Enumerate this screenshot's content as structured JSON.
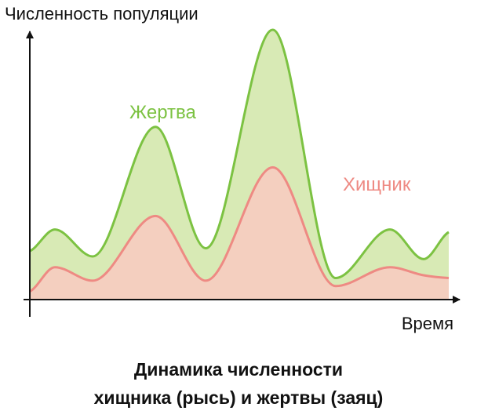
{
  "chart_data": {
    "type": "area",
    "ylabel": "Численность популяции",
    "xlabel": "Время",
    "caption": [
      "Динамика численности",
      "хищника (рысь) и жертвы (заяц)"
    ],
    "x": [
      0,
      0.06,
      0.15,
      0.3,
      0.42,
      0.58,
      0.73,
      0.86,
      0.94,
      1.0
    ],
    "ylim": [
      0,
      1
    ],
    "grid": false,
    "series": [
      {
        "name": "Жертва",
        "color": "#7cc242",
        "fill": "#d8eab5",
        "values": [
          0.18,
          0.26,
          0.16,
          0.64,
          0.19,
          1.0,
          0.08,
          0.26,
          0.15,
          0.25
        ]
      },
      {
        "name": "Хищник",
        "color": "#ee8a83",
        "fill": "#f4cfbf",
        "values": [
          0.03,
          0.12,
          0.07,
          0.31,
          0.07,
          0.49,
          0.05,
          0.12,
          0.09,
          0.08
        ]
      }
    ]
  }
}
